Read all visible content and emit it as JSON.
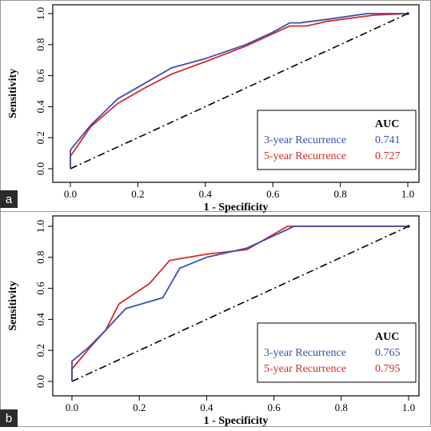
{
  "colors": {
    "series_3yr": "#3a4fb0",
    "series_5yr": "#d62a2a",
    "reference": "#000000",
    "panel_tag_bg": "#2b2b2b"
  },
  "chart_data": [
    {
      "type": "line",
      "panel_label": "a",
      "xlabel": "1 - Specificity",
      "ylabel": "Sensitivity",
      "xlim": [
        0,
        1
      ],
      "ylim": [
        0,
        1
      ],
      "xticks": [
        "0.0",
        "0.2",
        "0.4",
        "0.6",
        "0.8",
        "1.0"
      ],
      "yticks": [
        "0.0",
        "0.2",
        "0.4",
        "0.6",
        "0.8",
        "1.0"
      ],
      "legend_placement": "bottom-right",
      "legend_header": "AUC",
      "reference_line": "diagonal",
      "series": [
        {
          "name": "3-year Recurrence",
          "auc": "0.741",
          "x": [
            0,
            0,
            0.06,
            0.14,
            0.22,
            0.3,
            0.4,
            0.52,
            0.6,
            0.65,
            0.68,
            0.75,
            0.88,
            1.0
          ],
          "y": [
            0,
            0.12,
            0.28,
            0.45,
            0.55,
            0.65,
            0.71,
            0.8,
            0.88,
            0.94,
            0.94,
            0.96,
            1.0,
            1.0
          ]
        },
        {
          "name": "5-year Recurrence",
          "auc": "0.727",
          "x": [
            0,
            0,
            0.06,
            0.14,
            0.22,
            0.3,
            0.4,
            0.52,
            0.6,
            0.65,
            0.7,
            0.76,
            0.9,
            1.0
          ],
          "y": [
            0,
            0.08,
            0.27,
            0.42,
            0.52,
            0.61,
            0.69,
            0.79,
            0.87,
            0.92,
            0.92,
            0.95,
            0.99,
            1.0
          ]
        }
      ]
    },
    {
      "type": "line",
      "panel_label": "b",
      "xlabel": "1 - Specificity",
      "ylabel": "Sensitivity",
      "xlim": [
        0,
        1
      ],
      "ylim": [
        0,
        1
      ],
      "xticks": [
        "0.0",
        "0.2",
        "0.4",
        "0.6",
        "0.8",
        "1.0"
      ],
      "yticks": [
        "0.0",
        "0.2",
        "0.4",
        "0.6",
        "0.8",
        "1.0"
      ],
      "legend_placement": "bottom-right",
      "legend_header": "AUC",
      "reference_line": "diagonal",
      "series": [
        {
          "name": "3-year Recurrence",
          "auc": "0.765",
          "x": [
            0,
            0,
            0.05,
            0.1,
            0.16,
            0.27,
            0.32,
            0.4,
            0.52,
            0.66,
            1.0
          ],
          "y": [
            0,
            0.13,
            0.22,
            0.33,
            0.47,
            0.54,
            0.73,
            0.8,
            0.86,
            1.0,
            1.0
          ]
        },
        {
          "name": "5-year Recurrence",
          "auc": "0.795",
          "x": [
            0,
            0,
            0.05,
            0.1,
            0.14,
            0.23,
            0.29,
            0.4,
            0.52,
            0.64,
            1.0
          ],
          "y": [
            0,
            0.08,
            0.21,
            0.33,
            0.5,
            0.63,
            0.78,
            0.82,
            0.85,
            1.0,
            1.0
          ]
        }
      ]
    }
  ]
}
